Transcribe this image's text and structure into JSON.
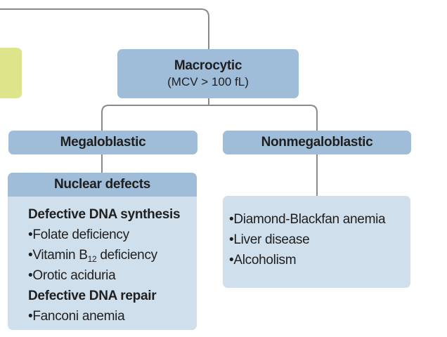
{
  "root": {
    "title": "Macrocytic",
    "subtitle": "(MCV > 100 fL)"
  },
  "megaloblastic": {
    "title": "Megaloblastic",
    "panel_header": "Nuclear defects",
    "groups": [
      {
        "heading": "Defective DNA synthesis",
        "items": [
          {
            "text": "•Folate deficiency"
          },
          {
            "pre": "•Vitamin B",
            "sub": "12",
            "post": " deficiency"
          },
          {
            "text": "•Orotic aciduria"
          }
        ]
      },
      {
        "heading": "Defective DNA repair",
        "items": [
          {
            "text": "•Fanconi anemia"
          }
        ]
      }
    ]
  },
  "nonmegaloblastic": {
    "title": "Nonmegaloblastic",
    "items": [
      "•Diamond-Blackfan anemia",
      "•Liver disease",
      "•Alcoholism"
    ]
  },
  "colors": {
    "dark_box": "#9fbcd9",
    "light_box": "#cfdfec",
    "side_box": "#dde48a",
    "connector": "#8a8a8a"
  }
}
